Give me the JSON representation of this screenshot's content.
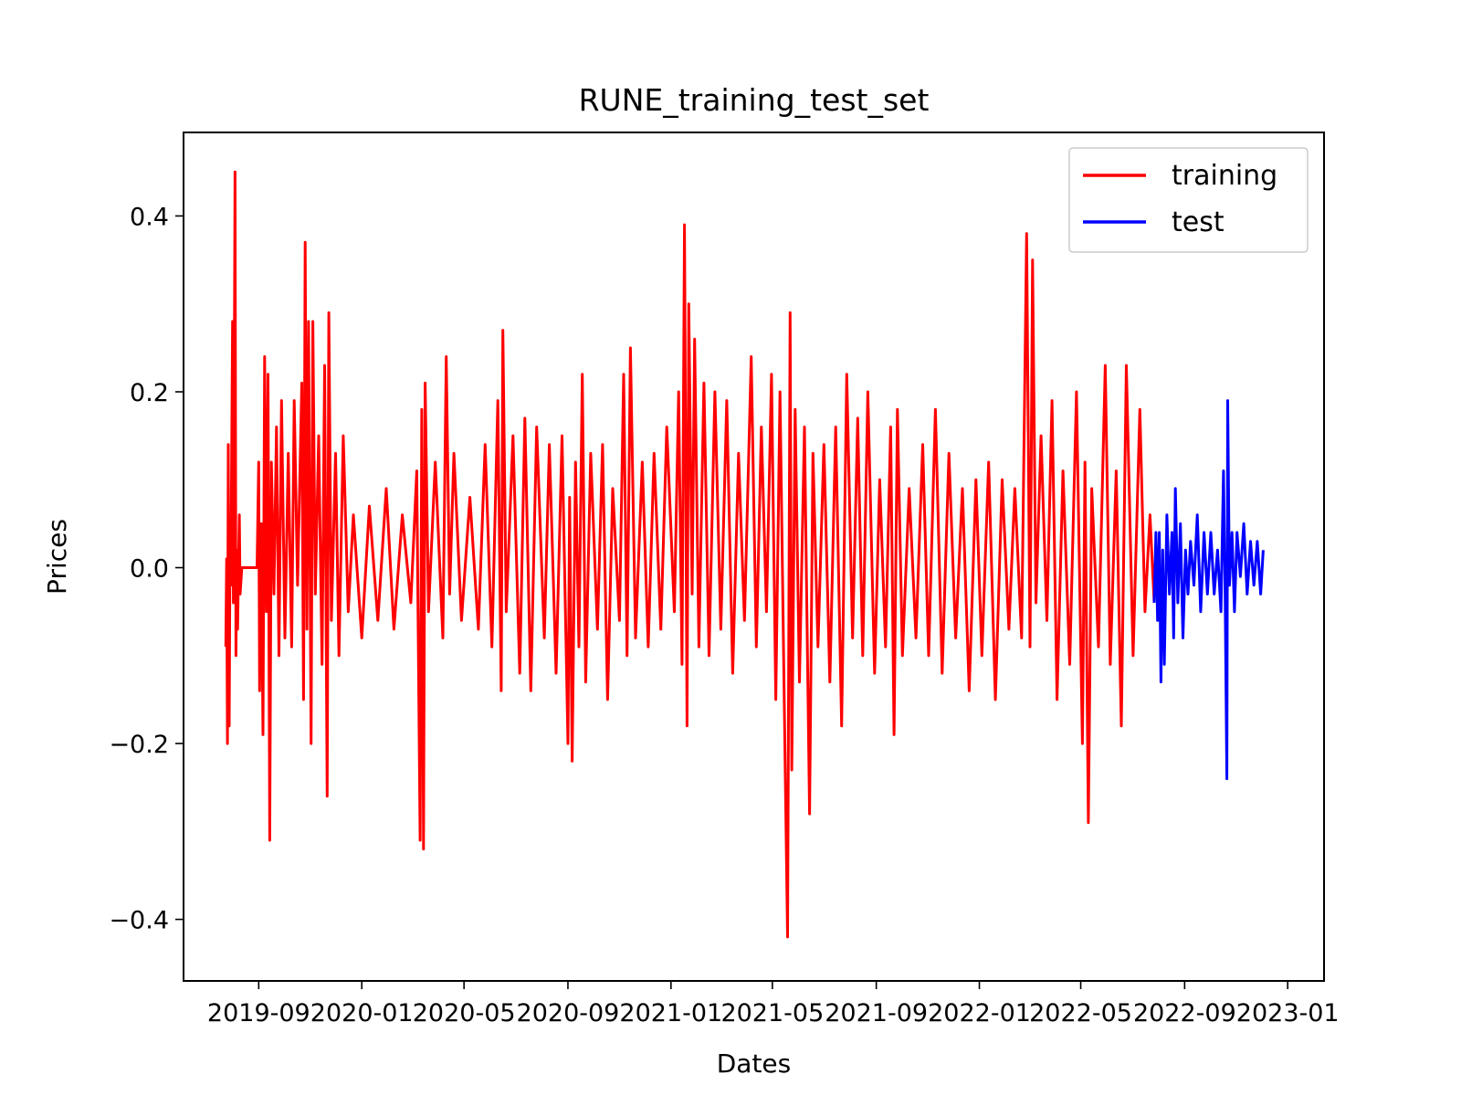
{
  "chart_data": {
    "type": "line",
    "title": "RUNE_training_test_set",
    "xlabel": "Dates",
    "ylabel": "Prices",
    "x_tick_labels": [
      "2019-09",
      "2020-01",
      "2020-05",
      "2020-09",
      "2021-01",
      "2021-05",
      "2021-09",
      "2022-01",
      "2022-05",
      "2022-09",
      "2023-01"
    ],
    "x_tick_dates": [
      "2019-09-01",
      "2020-01-01",
      "2020-05-01",
      "2020-09-01",
      "2021-01-01",
      "2021-05-01",
      "2021-09-01",
      "2022-01-01",
      "2022-05-01",
      "2022-09-01",
      "2023-01-01"
    ],
    "xlim": [
      "2019-06-04",
      "2023-02-13"
    ],
    "y_ticks": [
      -0.4,
      -0.2,
      0.0,
      0.2,
      0.4
    ],
    "y_tick_labels": [
      "−0.4",
      "−0.2",
      "0.0",
      "0.2",
      "0.4"
    ],
    "ylim": [
      -0.47,
      0.495
    ],
    "grid": false,
    "legend_position": "top-right",
    "series": [
      {
        "name": "training",
        "color": "#ff0000",
        "x_start": "2019-07-24",
        "x_end": "2022-07-27",
        "points": [
          [
            "2019-07-24",
            -0.09
          ],
          [
            "2019-07-25",
            0.01
          ],
          [
            "2019-07-26",
            -0.2
          ],
          [
            "2019-07-27",
            0.14
          ],
          [
            "2019-07-28",
            -0.18
          ],
          [
            "2019-07-29",
            0.03
          ],
          [
            "2019-07-30",
            -0.02
          ],
          [
            "2019-08-01",
            0.28
          ],
          [
            "2019-08-02",
            -0.04
          ],
          [
            "2019-08-04",
            0.45
          ],
          [
            "2019-08-05",
            -0.1
          ],
          [
            "2019-08-06",
            0.02
          ],
          [
            "2019-08-07",
            -0.07
          ],
          [
            "2019-08-09",
            0.06
          ],
          [
            "2019-08-10",
            -0.03
          ],
          [
            "2019-08-12",
            0.0
          ],
          [
            "2019-08-30",
            0.0
          ],
          [
            "2019-09-01",
            0.12
          ],
          [
            "2019-09-02",
            -0.14
          ],
          [
            "2019-09-04",
            0.05
          ],
          [
            "2019-09-06",
            -0.19
          ],
          [
            "2019-09-08",
            0.24
          ],
          [
            "2019-09-10",
            -0.05
          ],
          [
            "2019-09-12",
            0.22
          ],
          [
            "2019-09-14",
            -0.31
          ],
          [
            "2019-09-16",
            0.12
          ],
          [
            "2019-09-19",
            -0.03
          ],
          [
            "2019-09-22",
            0.16
          ],
          [
            "2019-09-25",
            -0.1
          ],
          [
            "2019-09-28",
            0.19
          ],
          [
            "2019-10-02",
            -0.08
          ],
          [
            "2019-10-06",
            0.13
          ],
          [
            "2019-10-10",
            -0.09
          ],
          [
            "2019-10-13",
            0.19
          ],
          [
            "2019-10-17",
            -0.02
          ],
          [
            "2019-10-22",
            0.21
          ],
          [
            "2019-10-24",
            -0.15
          ],
          [
            "2019-10-26",
            0.37
          ],
          [
            "2019-10-28",
            -0.07
          ],
          [
            "2019-10-30",
            0.28
          ],
          [
            "2019-11-02",
            -0.2
          ],
          [
            "2019-11-04",
            0.28
          ],
          [
            "2019-11-07",
            -0.03
          ],
          [
            "2019-11-11",
            0.15
          ],
          [
            "2019-11-15",
            -0.11
          ],
          [
            "2019-11-18",
            0.23
          ],
          [
            "2019-11-21",
            -0.26
          ],
          [
            "2019-11-23",
            0.29
          ],
          [
            "2019-11-26",
            -0.06
          ],
          [
            "2019-12-01",
            0.13
          ],
          [
            "2019-12-05",
            -0.1
          ],
          [
            "2019-12-10",
            0.15
          ],
          [
            "2019-12-16",
            -0.05
          ],
          [
            "2019-12-22",
            0.06
          ],
          [
            "2020-01-01",
            -0.08
          ],
          [
            "2020-01-10",
            0.07
          ],
          [
            "2020-01-20",
            -0.06
          ],
          [
            "2020-01-30",
            0.09
          ],
          [
            "2020-02-08",
            -0.07
          ],
          [
            "2020-02-18",
            0.06
          ],
          [
            "2020-02-28",
            -0.04
          ],
          [
            "2020-03-06",
            0.11
          ],
          [
            "2020-03-10",
            -0.31
          ],
          [
            "2020-03-12",
            0.18
          ],
          [
            "2020-03-14",
            -0.32
          ],
          [
            "2020-03-16",
            0.21
          ],
          [
            "2020-03-20",
            -0.05
          ],
          [
            "2020-03-28",
            0.12
          ],
          [
            "2020-04-06",
            -0.08
          ],
          [
            "2020-04-10",
            0.24
          ],
          [
            "2020-04-14",
            -0.03
          ],
          [
            "2020-04-19",
            0.13
          ],
          [
            "2020-04-28",
            -0.06
          ],
          [
            "2020-05-08",
            0.08
          ],
          [
            "2020-05-18",
            -0.07
          ],
          [
            "2020-05-26",
            0.14
          ],
          [
            "2020-06-03",
            -0.09
          ],
          [
            "2020-06-10",
            0.19
          ],
          [
            "2020-06-14",
            -0.14
          ],
          [
            "2020-06-16",
            0.27
          ],
          [
            "2020-06-20",
            -0.05
          ],
          [
            "2020-06-28",
            0.15
          ],
          [
            "2020-07-06",
            -0.12
          ],
          [
            "2020-07-12",
            0.17
          ],
          [
            "2020-07-19",
            -0.14
          ],
          [
            "2020-07-26",
            0.16
          ],
          [
            "2020-08-04",
            -0.08
          ],
          [
            "2020-08-10",
            0.14
          ],
          [
            "2020-08-18",
            -0.12
          ],
          [
            "2020-08-25",
            0.15
          ],
          [
            "2020-09-01",
            -0.2
          ],
          [
            "2020-09-03",
            0.08
          ],
          [
            "2020-09-06",
            -0.22
          ],
          [
            "2020-09-10",
            0.12
          ],
          [
            "2020-09-14",
            -0.09
          ],
          [
            "2020-09-18",
            0.22
          ],
          [
            "2020-09-22",
            -0.13
          ],
          [
            "2020-09-28",
            0.13
          ],
          [
            "2020-10-06",
            -0.07
          ],
          [
            "2020-10-12",
            0.14
          ],
          [
            "2020-10-18",
            -0.15
          ],
          [
            "2020-10-24",
            0.09
          ],
          [
            "2020-11-01",
            -0.06
          ],
          [
            "2020-11-06",
            0.22
          ],
          [
            "2020-11-10",
            -0.1
          ],
          [
            "2020-11-14",
            0.25
          ],
          [
            "2020-11-20",
            -0.08
          ],
          [
            "2020-11-28",
            0.12
          ],
          [
            "2020-12-05",
            -0.09
          ],
          [
            "2020-12-12",
            0.13
          ],
          [
            "2020-12-20",
            -0.07
          ],
          [
            "2020-12-27",
            0.16
          ],
          [
            "2021-01-05",
            -0.05
          ],
          [
            "2021-01-10",
            0.2
          ],
          [
            "2021-01-14",
            -0.11
          ],
          [
            "2021-01-17",
            0.39
          ],
          [
            "2021-01-20",
            -0.18
          ],
          [
            "2021-01-22",
            0.3
          ],
          [
            "2021-01-26",
            -0.03
          ],
          [
            "2021-01-29",
            0.26
          ],
          [
            "2021-02-03",
            -0.09
          ],
          [
            "2021-02-09",
            0.21
          ],
          [
            "2021-02-15",
            -0.1
          ],
          [
            "2021-02-22",
            0.2
          ],
          [
            "2021-03-01",
            -0.07
          ],
          [
            "2021-03-08",
            0.19
          ],
          [
            "2021-03-15",
            -0.12
          ],
          [
            "2021-03-22",
            0.13
          ],
          [
            "2021-03-29",
            -0.06
          ],
          [
            "2021-04-06",
            0.24
          ],
          [
            "2021-04-12",
            -0.09
          ],
          [
            "2021-04-18",
            0.16
          ],
          [
            "2021-04-24",
            -0.05
          ],
          [
            "2021-04-30",
            0.22
          ],
          [
            "2021-05-05",
            -0.15
          ],
          [
            "2021-05-10",
            0.2
          ],
          [
            "2021-05-14",
            -0.08
          ],
          [
            "2021-05-19",
            -0.42
          ],
          [
            "2021-05-22",
            0.29
          ],
          [
            "2021-05-24",
            -0.23
          ],
          [
            "2021-05-28",
            0.18
          ],
          [
            "2021-06-02",
            -0.13
          ],
          [
            "2021-06-08",
            0.16
          ],
          [
            "2021-06-14",
            -0.28
          ],
          [
            "2021-06-18",
            0.13
          ],
          [
            "2021-06-24",
            -0.09
          ],
          [
            "2021-07-01",
            0.14
          ],
          [
            "2021-07-08",
            -0.13
          ],
          [
            "2021-07-15",
            0.16
          ],
          [
            "2021-07-22",
            -0.18
          ],
          [
            "2021-07-28",
            0.22
          ],
          [
            "2021-08-04",
            -0.08
          ],
          [
            "2021-08-10",
            0.17
          ],
          [
            "2021-08-16",
            -0.1
          ],
          [
            "2021-08-22",
            0.2
          ],
          [
            "2021-08-30",
            -0.12
          ],
          [
            "2021-09-05",
            0.1
          ],
          [
            "2021-09-12",
            -0.09
          ],
          [
            "2021-09-18",
            0.16
          ],
          [
            "2021-09-22",
            -0.19
          ],
          [
            "2021-09-26",
            0.18
          ],
          [
            "2021-10-02",
            -0.1
          ],
          [
            "2021-10-10",
            0.09
          ],
          [
            "2021-10-18",
            -0.08
          ],
          [
            "2021-10-26",
            0.14
          ],
          [
            "2021-11-02",
            -0.1
          ],
          [
            "2021-11-10",
            0.18
          ],
          [
            "2021-11-18",
            -0.12
          ],
          [
            "2021-11-26",
            0.13
          ],
          [
            "2021-12-04",
            -0.08
          ],
          [
            "2021-12-12",
            0.09
          ],
          [
            "2021-12-20",
            -0.14
          ],
          [
            "2021-12-28",
            0.1
          ],
          [
            "2022-01-04",
            -0.1
          ],
          [
            "2022-01-12",
            0.12
          ],
          [
            "2022-01-20",
            -0.15
          ],
          [
            "2022-01-28",
            0.1
          ],
          [
            "2022-02-05",
            -0.07
          ],
          [
            "2022-02-12",
            0.09
          ],
          [
            "2022-02-20",
            -0.08
          ],
          [
            "2022-02-26",
            0.38
          ],
          [
            "2022-03-02",
            -0.09
          ],
          [
            "2022-03-05",
            0.35
          ],
          [
            "2022-03-09",
            -0.04
          ],
          [
            "2022-03-15",
            0.15
          ],
          [
            "2022-03-22",
            -0.06
          ],
          [
            "2022-03-28",
            0.19
          ],
          [
            "2022-04-03",
            -0.15
          ],
          [
            "2022-04-10",
            0.11
          ],
          [
            "2022-04-18",
            -0.11
          ],
          [
            "2022-04-26",
            0.2
          ],
          [
            "2022-05-03",
            -0.2
          ],
          [
            "2022-05-06",
            0.12
          ],
          [
            "2022-05-10",
            -0.29
          ],
          [
            "2022-05-14",
            0.09
          ],
          [
            "2022-05-22",
            -0.09
          ],
          [
            "2022-05-30",
            0.23
          ],
          [
            "2022-06-05",
            -0.11
          ],
          [
            "2022-06-12",
            0.11
          ],
          [
            "2022-06-18",
            -0.18
          ],
          [
            "2022-06-24",
            0.23
          ],
          [
            "2022-07-02",
            -0.1
          ],
          [
            "2022-07-10",
            0.18
          ],
          [
            "2022-07-16",
            -0.05
          ],
          [
            "2022-07-22",
            0.06
          ],
          [
            "2022-07-27",
            -0.04
          ]
        ]
      },
      {
        "name": "test",
        "color": "#0000ff",
        "x_start": "2022-07-27",
        "x_end": "2022-12-03",
        "points": [
          [
            "2022-07-27",
            -0.04
          ],
          [
            "2022-07-29",
            0.04
          ],
          [
            "2022-07-31",
            -0.06
          ],
          [
            "2022-08-02",
            0.04
          ],
          [
            "2022-08-04",
            -0.13
          ],
          [
            "2022-08-06",
            0.02
          ],
          [
            "2022-08-08",
            -0.11
          ],
          [
            "2022-08-11",
            0.06
          ],
          [
            "2022-08-14",
            -0.03
          ],
          [
            "2022-08-17",
            0.04
          ],
          [
            "2022-08-19",
            -0.08
          ],
          [
            "2022-08-21",
            0.09
          ],
          [
            "2022-08-24",
            -0.04
          ],
          [
            "2022-08-27",
            0.05
          ],
          [
            "2022-08-30",
            -0.08
          ],
          [
            "2022-09-02",
            0.02
          ],
          [
            "2022-09-05",
            -0.03
          ],
          [
            "2022-09-08",
            0.03
          ],
          [
            "2022-09-12",
            -0.02
          ],
          [
            "2022-09-16",
            0.06
          ],
          [
            "2022-09-20",
            -0.05
          ],
          [
            "2022-09-24",
            0.04
          ],
          [
            "2022-09-28",
            -0.03
          ],
          [
            "2022-10-02",
            0.04
          ],
          [
            "2022-10-06",
            -0.03
          ],
          [
            "2022-10-10",
            0.02
          ],
          [
            "2022-10-14",
            -0.05
          ],
          [
            "2022-10-17",
            0.11
          ],
          [
            "2022-10-19",
            -0.04
          ],
          [
            "2022-10-21",
            -0.24
          ],
          [
            "2022-10-22",
            0.19
          ],
          [
            "2022-10-24",
            -0.02
          ],
          [
            "2022-10-27",
            0.04
          ],
          [
            "2022-10-30",
            -0.05
          ],
          [
            "2022-11-02",
            0.04
          ],
          [
            "2022-11-06",
            -0.01
          ],
          [
            "2022-11-10",
            0.05
          ],
          [
            "2022-11-14",
            -0.03
          ],
          [
            "2022-11-18",
            0.03
          ],
          [
            "2022-11-22",
            -0.02
          ],
          [
            "2022-11-26",
            0.03
          ],
          [
            "2022-11-30",
            -0.03
          ],
          [
            "2022-12-03",
            0.02
          ]
        ]
      }
    ]
  }
}
